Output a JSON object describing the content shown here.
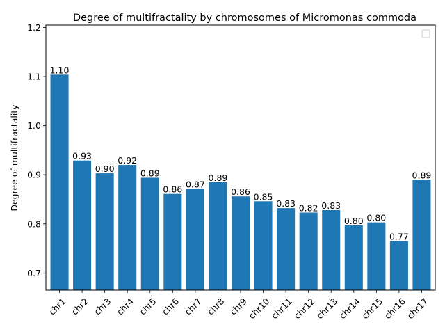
{
  "chart_data": {
    "type": "bar",
    "title": "Degree of multifractality by chromosomes of Micromonas commoda",
    "xlabel": "",
    "ylabel": "Degree of multifractality",
    "categories": [
      "chr1",
      "chr2",
      "chr3",
      "chr4",
      "chr5",
      "chr6",
      "chr7",
      "chr8",
      "chr9",
      "chr10",
      "chr11",
      "chr12",
      "chr13",
      "chr14",
      "chr15",
      "chr16",
      "chr17"
    ],
    "values": [
      1.104,
      0.929,
      0.903,
      0.92,
      0.894,
      0.861,
      0.871,
      0.885,
      0.856,
      0.846,
      0.832,
      0.823,
      0.828,
      0.797,
      0.803,
      0.765,
      0.89
    ],
    "data_labels": [
      "1.10",
      "0.93",
      "0.90",
      "0.92",
      "0.89",
      "0.86",
      "0.87",
      "0.89",
      "0.86",
      "0.85",
      "0.83",
      "0.82",
      "0.83",
      "0.80",
      "0.80",
      "0.77",
      "0.89"
    ],
    "ylim": [
      0.665,
      1.205
    ],
    "yticks": [
      0.7,
      0.8,
      0.9,
      1.0,
      1.1,
      1.2
    ],
    "ytick_labels": [
      "0.7",
      "0.8",
      "0.9",
      "1.0",
      "1.1",
      "1.2"
    ],
    "bar_color": "#1f77b4",
    "grid": false,
    "legend": {
      "placement": "top-right",
      "entries": []
    }
  }
}
